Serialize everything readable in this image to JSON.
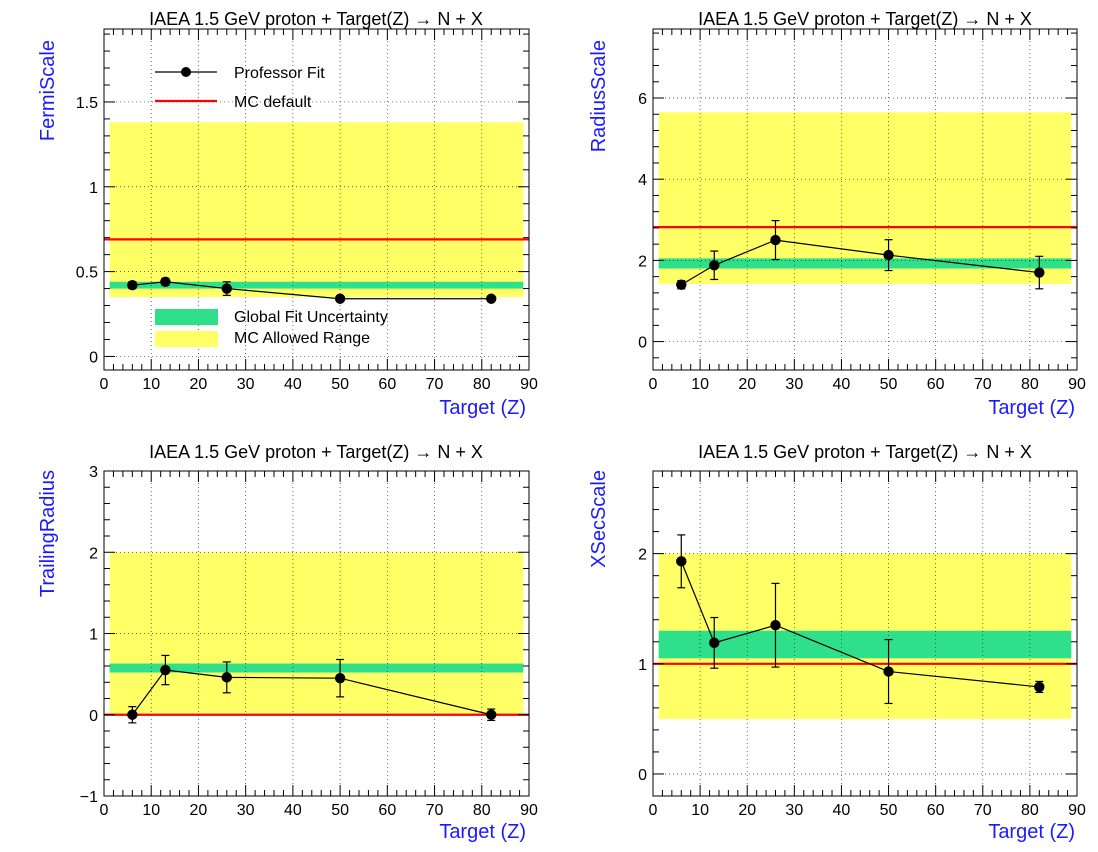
{
  "figure_title": "IAEA 1.5 GeV proton + Target(Z) → N + X",
  "colors": {
    "fit_line": "#000000",
    "mc_default": "#ff0000",
    "global_band": "#2ee08a",
    "allowed_range": "#ffff66",
    "axis_label": "#1a1aff"
  },
  "legend": {
    "professor_fit": "Professor Fit",
    "mc_default": "MC default",
    "global_fit": "Global Fit Uncertainty",
    "mc_allowed": "MC Allowed Range"
  },
  "chart_data": [
    {
      "type": "scatter",
      "title": "IAEA 1.5 GeV proton + Target(Z) → N + X",
      "xlabel": "Target (Z)",
      "ylabel": "FermiScale",
      "xlim": [
        0,
        90
      ],
      "ylim": [
        -0.08,
        1.93
      ],
      "xticks": [
        0,
        10,
        20,
        30,
        40,
        50,
        60,
        70,
        80,
        90
      ],
      "yticks": [
        0,
        0.5,
        1,
        1.5
      ],
      "ytick_labels": [
        "0",
        "0.5",
        "1",
        "1.5"
      ],
      "x": [
        6,
        13,
        26,
        50,
        82
      ],
      "y": [
        0.42,
        0.44,
        0.4,
        0.34,
        0.34
      ],
      "yerr": [
        0.02,
        0.02,
        0.04,
        0.01,
        0.01
      ],
      "mc_default": 0.69,
      "global_band": [
        0.4,
        0.44
      ],
      "allowed_range": [
        0.35,
        1.38
      ]
    },
    {
      "type": "scatter",
      "title": "IAEA 1.5 GeV proton + Target(Z) → N + X",
      "xlabel": "Target (Z)",
      "ylabel": "RadiusScale",
      "xlim": [
        0,
        90
      ],
      "ylim": [
        -0.7,
        7.7
      ],
      "xticks": [
        0,
        10,
        20,
        30,
        40,
        50,
        60,
        70,
        80,
        90
      ],
      "yticks": [
        0,
        2,
        4,
        6
      ],
      "ytick_labels": [
        "0",
        "2",
        "4",
        "6"
      ],
      "x": [
        6,
        13,
        26,
        50,
        82
      ],
      "y": [
        1.4,
        1.88,
        2.5,
        2.13,
        1.7
      ],
      "yerr": [
        0.1,
        0.35,
        0.48,
        0.38,
        0.4
      ],
      "mc_default": 2.82,
      "global_band": [
        1.8,
        2.05
      ],
      "allowed_range": [
        1.42,
        5.65
      ]
    },
    {
      "type": "scatter",
      "title": "IAEA 1.5 GeV proton + Target(Z) → N + X",
      "xlabel": "Target (Z)",
      "ylabel": "TrailingRadius",
      "xlim": [
        0,
        90
      ],
      "ylim": [
        -1,
        3
      ],
      "xticks": [
        0,
        10,
        20,
        30,
        40,
        50,
        60,
        70,
        80,
        90
      ],
      "yticks": [
        -1,
        0,
        1,
        2,
        3
      ],
      "ytick_labels": [
        "−1",
        "0",
        "1",
        "2",
        "3"
      ],
      "x": [
        6,
        13,
        26,
        50,
        82
      ],
      "y": [
        0.0,
        0.55,
        0.46,
        0.45,
        0.0
      ],
      "yerr": [
        0.1,
        0.18,
        0.19,
        0.23,
        0.07
      ],
      "mc_default": 0.0,
      "global_band": [
        0.52,
        0.63
      ],
      "allowed_range": [
        0.0,
        2.0
      ]
    },
    {
      "type": "scatter",
      "title": "IAEA 1.5 GeV proton + Target(Z) → N + X",
      "xlabel": "Target (Z)",
      "ylabel": "XSecScale",
      "xlim": [
        0,
        90
      ],
      "ylim": [
        -0.2,
        2.75
      ],
      "xticks": [
        0,
        10,
        20,
        30,
        40,
        50,
        60,
        70,
        80,
        90
      ],
      "yticks": [
        0,
        1,
        2
      ],
      "ytick_labels": [
        "0",
        "1",
        "2"
      ],
      "x": [
        6,
        13,
        26,
        50,
        82
      ],
      "y": [
        1.93,
        1.19,
        1.35,
        0.93,
        0.79
      ],
      "yerr": [
        0.24,
        0.23,
        0.38,
        0.29,
        0.05
      ],
      "mc_default": 1.0,
      "global_band": [
        1.05,
        1.3
      ],
      "allowed_range": [
        0.5,
        2.0
      ]
    }
  ]
}
